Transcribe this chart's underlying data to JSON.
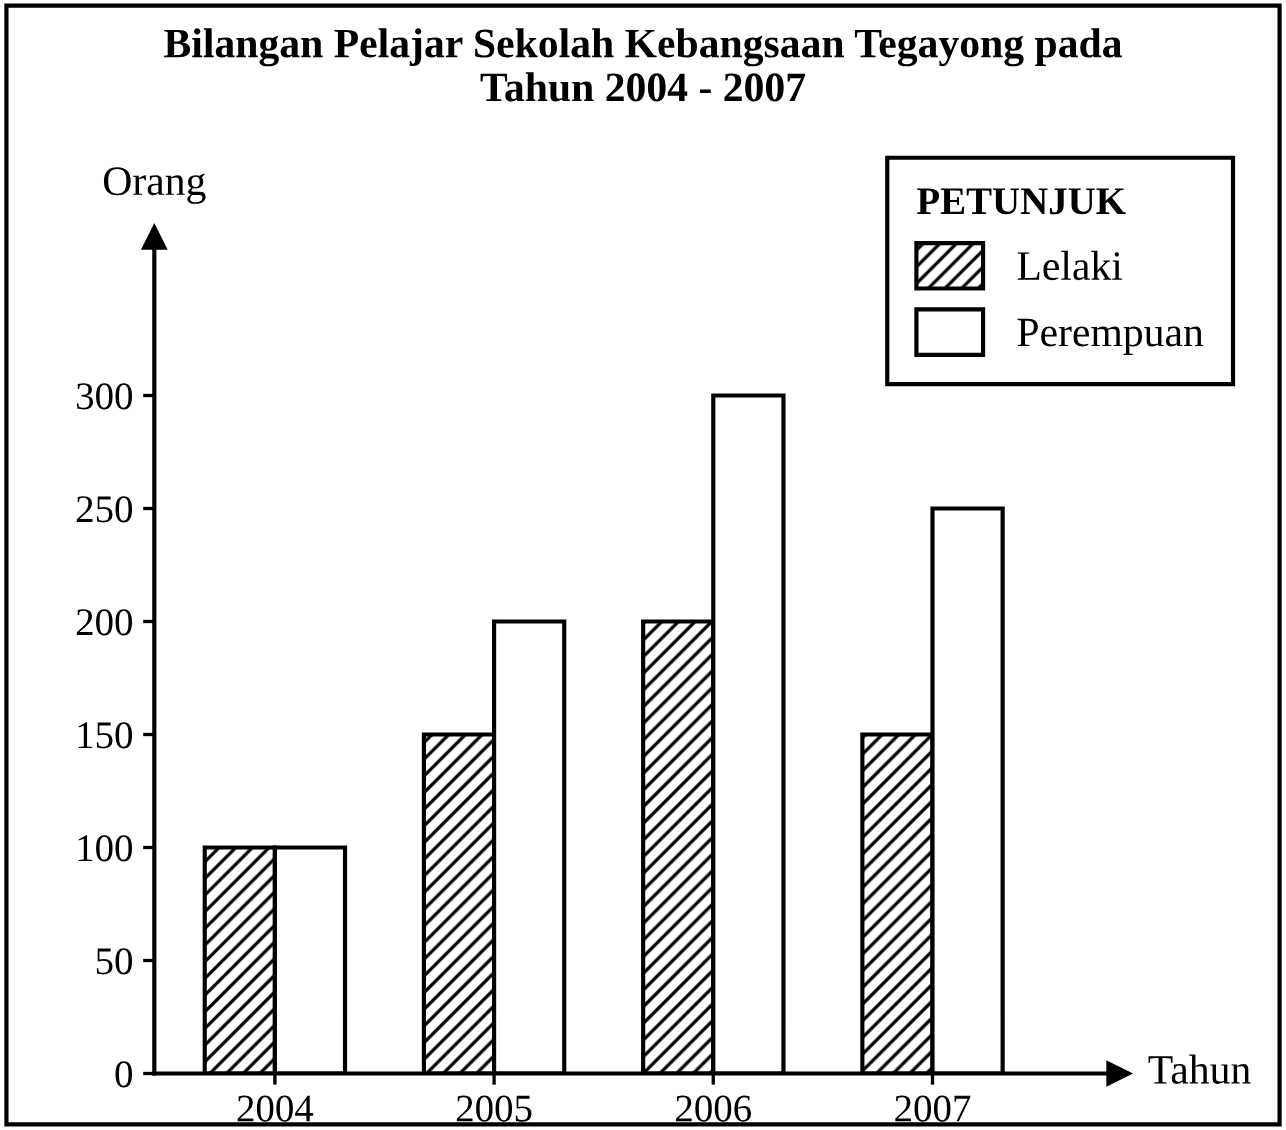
{
  "chart_data": {
    "type": "bar",
    "title": "Bilangan Pelajar Sekolah Kebangsaan Tegayong pada\nTahun 2004 - 2007",
    "xlabel": "Tahun",
    "ylabel": "Orang",
    "legend_title": "PETUNJUK",
    "categories": [
      "2004",
      "2005",
      "2006",
      "2007"
    ],
    "series": [
      {
        "name": "Lelaki",
        "color": "#000000",
        "values": [
          100,
          150,
          200,
          150
        ]
      },
      {
        "name": "Perempuan",
        "color": "#ffffff",
        "values": [
          100,
          200,
          300,
          250
        ]
      }
    ],
    "ylim": [
      0,
      370
    ],
    "yticks": [
      0,
      50,
      100,
      150,
      200,
      250,
      300
    ],
    "grid": false,
    "legend": "top right"
  }
}
